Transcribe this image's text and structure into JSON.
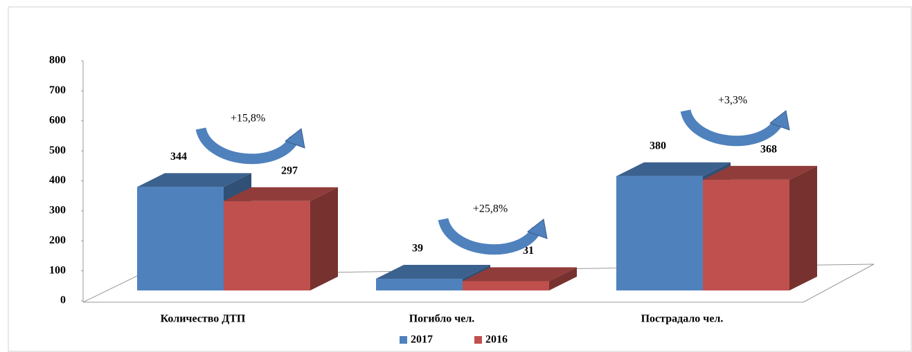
{
  "chart_data": {
    "type": "bar3d",
    "categories": [
      "Количество ДТП",
      "Погибло чел.",
      "Пострадало чел."
    ],
    "series": [
      {
        "name": "2017",
        "color": "#4f81bd",
        "values": [
          344,
          39,
          380
        ]
      },
      {
        "name": "2016",
        "color": "#c0504d",
        "values": [
          297,
          31,
          368
        ]
      }
    ],
    "annotations": [
      "+15,8%",
      "+25,8%",
      "+3,3%"
    ],
    "ylim": [
      0,
      800
    ],
    "yticks": [
      0,
      100,
      200,
      300,
      400,
      500,
      600,
      700,
      800
    ],
    "legend": "bottom"
  }
}
